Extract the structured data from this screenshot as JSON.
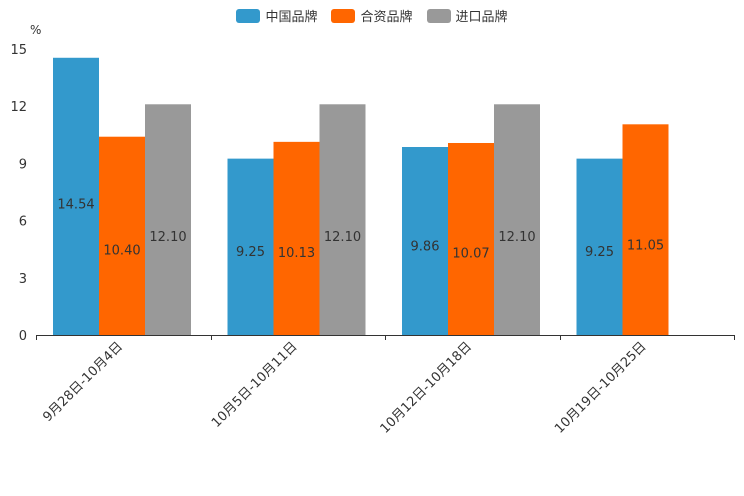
{
  "chart_data": {
    "type": "bar",
    "categories": [
      "9月28日-10月4日",
      "10月5日-10月11日",
      "10月12日-10月18日",
      "10月19日-10月25日"
    ],
    "series": [
      {
        "name": "中国品牌",
        "color": "#3399cc",
        "values": [
          14.54,
          9.25,
          9.86,
          9.25
        ],
        "labels": [
          "14.54",
          "9.25",
          "9.86",
          "9.25"
        ]
      },
      {
        "name": "合资品牌",
        "color": "#ff6600",
        "values": [
          10.4,
          10.13,
          10.07,
          11.05
        ],
        "labels": [
          "10.40",
          "10.13",
          "10.07",
          "11.05"
        ]
      },
      {
        "name": "进口品牌",
        "color": "#999999",
        "values": [
          12.1,
          12.1,
          12.1,
          null
        ],
        "labels": [
          "12.10",
          "12.10",
          "12.10",
          ""
        ]
      }
    ],
    "ylabel": "%",
    "ylim": [
      0,
      15
    ],
    "yticks": [
      "0",
      "3",
      "6",
      "9",
      "12",
      "15"
    ],
    "ytick_values": [
      0,
      3,
      6,
      9,
      12,
      15
    ],
    "legend_position": "top-center",
    "grid": false
  }
}
